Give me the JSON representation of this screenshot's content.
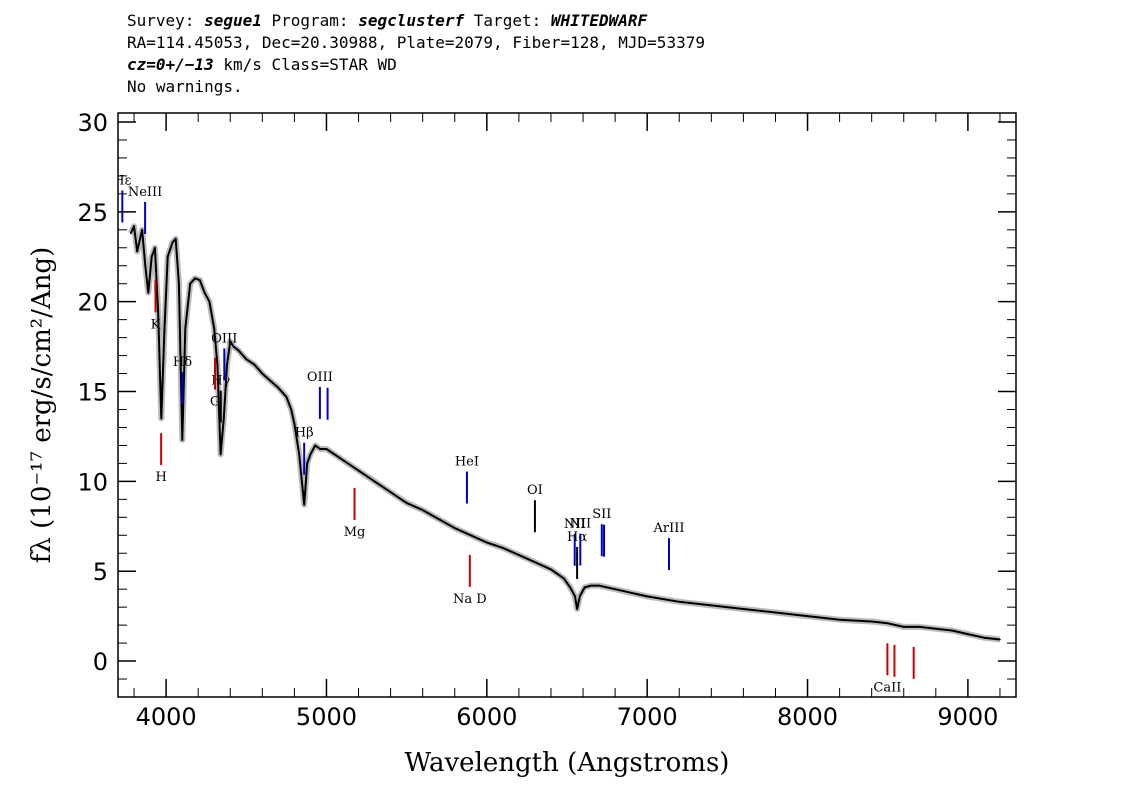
{
  "header": {
    "survey_label": "Survey: ",
    "survey": "segue1",
    "program_label": " Program: ",
    "program": "segclusterf",
    "target_label": " Target: ",
    "target": "WHITEDWARF",
    "line2": "RA=114.45053, Dec=20.30988, Plate=2079, Fiber=128, MJD=53379",
    "cz": "cz=0+/−13",
    "cz_rest": " km/s Class=STAR WD",
    "warnings": "No warnings."
  },
  "chart_data": {
    "type": "line",
    "xlabel": "Wavelength (Angstroms)",
    "ylabel": "fλ (10⁻¹⁷ erg/s/cm²/Ang)",
    "xlim": [
      3700,
      9300
    ],
    "ylim": [
      -2,
      30.5
    ],
    "xticks": [
      4000,
      5000,
      6000,
      7000,
      8000,
      9000
    ],
    "yticks": [
      0,
      5,
      10,
      15,
      20,
      25,
      30
    ],
    "grid": false,
    "series": [
      {
        "color": "#000000",
        "x": [
          3780,
          3800,
          3820,
          3850,
          3870,
          3889,
          3910,
          3930,
          3950,
          3970,
          3990,
          4010,
          4040,
          4060,
          4080,
          4101,
          4120,
          4150,
          4180,
          4210,
          4240,
          4270,
          4300,
          4320,
          4340,
          4360,
          4380,
          4400,
          4420,
          4450,
          4500,
          4550,
          4600,
          4650,
          4700,
          4750,
          4780,
          4800,
          4830,
          4861,
          4880,
          4900,
          4930,
          4960,
          5000,
          5100,
          5200,
          5300,
          5400,
          5500,
          5600,
          5700,
          5800,
          5900,
          6000,
          6100,
          6200,
          6300,
          6400,
          6480,
          6520,
          6550,
          6563,
          6580,
          6610,
          6650,
          6700,
          6800,
          6900,
          7000,
          7200,
          7400,
          7600,
          7800,
          8000,
          8200,
          8400,
          8500,
          8600,
          8700,
          8800,
          8900,
          9000,
          9100,
          9200
        ],
        "y": [
          23.8,
          24.2,
          22.8,
          24.0,
          22.0,
          20.5,
          22.5,
          23.0,
          19.5,
          13.5,
          18.5,
          22.5,
          23.3,
          23.5,
          21.0,
          12.3,
          18.5,
          21.0,
          21.3,
          21.2,
          20.5,
          20.0,
          18.5,
          16.5,
          11.5,
          13.5,
          16.5,
          17.8,
          17.5,
          17.3,
          16.8,
          16.5,
          16.0,
          15.6,
          15.2,
          14.7,
          14.0,
          13.2,
          11.5,
          8.7,
          11.0,
          11.5,
          12.0,
          11.8,
          11.8,
          11.2,
          10.6,
          10.0,
          9.4,
          8.8,
          8.4,
          7.9,
          7.4,
          7.0,
          6.6,
          6.3,
          5.9,
          5.5,
          5.1,
          4.6,
          4.1,
          3.6,
          2.9,
          3.6,
          4.1,
          4.2,
          4.2,
          4.0,
          3.8,
          3.6,
          3.3,
          3.1,
          2.9,
          2.7,
          2.5,
          2.3,
          2.2,
          2.1,
          1.9,
          1.9,
          1.8,
          1.7,
          1.5,
          1.3,
          1.2
        ]
      }
    ],
    "annotations": [
      {
        "label": "Hε",
        "x": 3727,
        "color": "#0000cc",
        "pos": "above"
      },
      {
        "label": "NeIII",
        "x": 3869,
        "color": "#0000cc",
        "pos": "above"
      },
      {
        "label": "Hδ",
        "x": 4102,
        "color": "#0000cc",
        "pos": "above"
      },
      {
        "label": "Hγ",
        "x": 4341,
        "color": "#000000",
        "pos": "above"
      },
      {
        "label": "OIII",
        "x": 4363,
        "color": "#0000cc",
        "pos": "above"
      },
      {
        "label": "Hβ",
        "x": 4861,
        "color": "#0000cc",
        "pos": "above"
      },
      {
        "label": "OIII",
        "x": 4959,
        "color": "#0000cc",
        "pos": "above"
      },
      {
        "label": "",
        "x": 5007,
        "color": "#0000cc",
        "pos": "above"
      },
      {
        "label": "HeI",
        "x": 5876,
        "color": "#0000cc",
        "pos": "above"
      },
      {
        "label": "OI",
        "x": 6300,
        "color": "#000000",
        "pos": "above"
      },
      {
        "label": "NII",
        "x": 6548,
        "color": "#0000cc",
        "pos": "above"
      },
      {
        "label": "Hα",
        "x": 6563,
        "color": "#000000",
        "pos": "above"
      },
      {
        "label": "NII",
        "x": 6583,
        "color": "#0000cc",
        "pos": "above"
      },
      {
        "label": "SII",
        "x": 6717,
        "color": "#0000cc",
        "pos": "above"
      },
      {
        "label": "",
        "x": 6731,
        "color": "#0000cc",
        "pos": "above"
      },
      {
        "label": "ArIII",
        "x": 7136,
        "color": "#0000cc",
        "pos": "above"
      },
      {
        "label": "K",
        "x": 3934,
        "color": "#cc0000",
        "pos": "below"
      },
      {
        "label": "H",
        "x": 3969,
        "color": "#cc0000",
        "pos": "below"
      },
      {
        "label": "G",
        "x": 4305,
        "color": "#cc0000",
        "pos": "below"
      },
      {
        "label": "Mg",
        "x": 5175,
        "color": "#cc0000",
        "pos": "below"
      },
      {
        "label": "Na D",
        "x": 5894,
        "color": "#cc0000",
        "pos": "below"
      },
      {
        "label": "CaII",
        "x": 8498,
        "color": "#cc0000",
        "pos": "below"
      },
      {
        "label": "",
        "x": 8542,
        "color": "#cc0000",
        "pos": "below"
      },
      {
        "label": "",
        "x": 8662,
        "color": "#cc0000",
        "pos": "below"
      }
    ]
  }
}
